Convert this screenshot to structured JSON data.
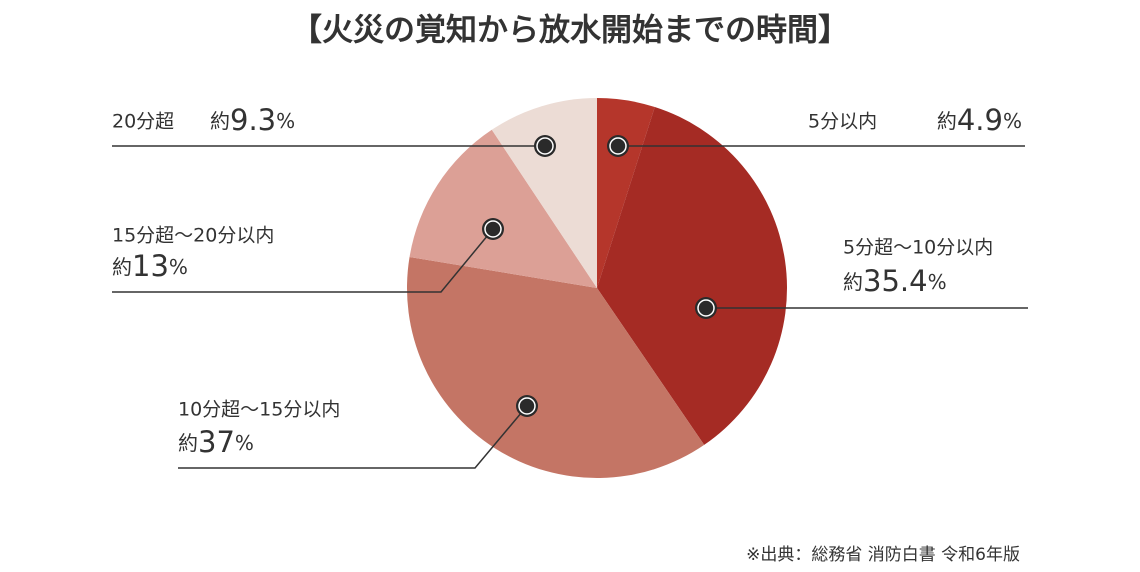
{
  "chart_data": {
    "type": "pie",
    "title": "【火災の覚知から放水開始までの時間】",
    "categories": [
      "5分以内",
      "5分超～10分以内",
      "10分超～15分以内",
      "15分超～20分以内",
      "20分超"
    ],
    "values": [
      4.9,
      35.4,
      37,
      13,
      9.3
    ],
    "value_labels": [
      "約4.9%",
      "約35.4%",
      "約37%",
      "約13%",
      "約9.3%"
    ],
    "colors": [
      "#b5362b",
      "#a52b24",
      "#c47565",
      "#dca096",
      "#ecdcd5"
    ],
    "source": "※出典：総務省 消防白書 令和6年版"
  }
}
